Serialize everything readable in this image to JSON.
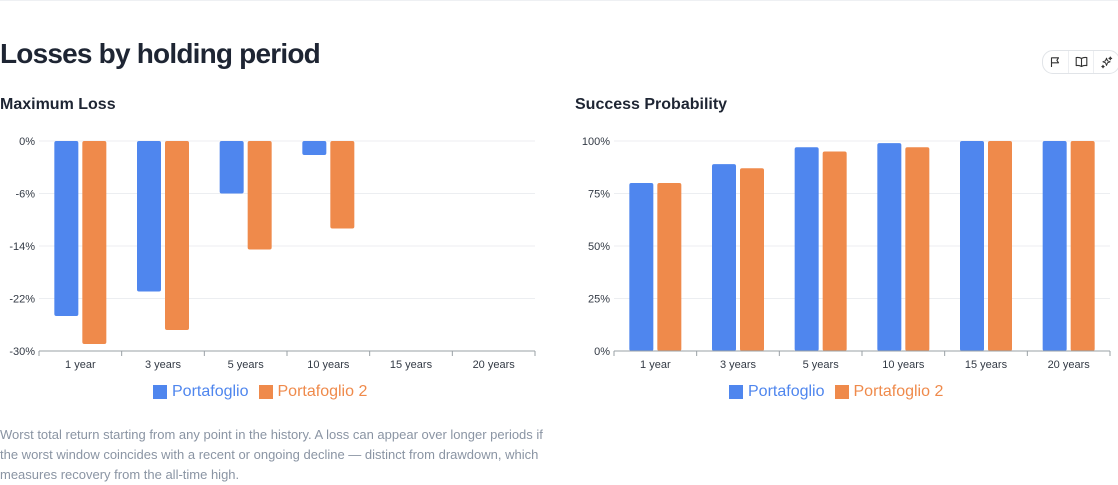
{
  "page": {
    "title": "Losses by holding period",
    "caption": "Worst total return starting from any point in the history. A loss can appear over longer periods if the worst window coincides with a recent or ongoing decline — distinct from drawdown, which measures recovery from the all-time high."
  },
  "toolbar": {
    "icons": [
      "flag-icon",
      "book-icon",
      "sparkle-icon"
    ]
  },
  "colors": {
    "series1": "#4f86ee",
    "series2": "#ef8a4b",
    "grid": "#eceef1",
    "axis": "#9aa0a6",
    "tick_text": "#333a45"
  },
  "chart_data": [
    {
      "type": "bar",
      "title": "Maximum Loss",
      "categories": [
        "1 year",
        "3 years",
        "5 years",
        "10 years",
        "15 years",
        "20 years"
      ],
      "series": [
        {
          "name": "Portafoglio",
          "values": [
            -25,
            -21.5,
            -7.5,
            -2,
            null,
            null
          ]
        },
        {
          "name": "Portafoglio 2",
          "values": [
            -29,
            -27,
            -15.5,
            -12.5,
            null,
            null
          ]
        }
      ],
      "yticks": [
        "0%",
        "-6%",
        "-14%",
        "-22%",
        "-30%"
      ],
      "ylim": [
        -30,
        0
      ],
      "grid": true,
      "legend": "bottom-center"
    },
    {
      "type": "bar",
      "title": "Success Probability",
      "categories": [
        "1 year",
        "3 years",
        "5 years",
        "10 years",
        "15 years",
        "20 years"
      ],
      "series": [
        {
          "name": "Portafoglio",
          "values": [
            80,
            89,
            97,
            99,
            100,
            100
          ]
        },
        {
          "name": "Portafoglio 2",
          "values": [
            80,
            87,
            95,
            97,
            100,
            100
          ]
        }
      ],
      "yticks": [
        "100%",
        "75%",
        "50%",
        "25%",
        "0%"
      ],
      "ylim": [
        0,
        100
      ],
      "grid": true,
      "legend": "bottom-center"
    }
  ]
}
